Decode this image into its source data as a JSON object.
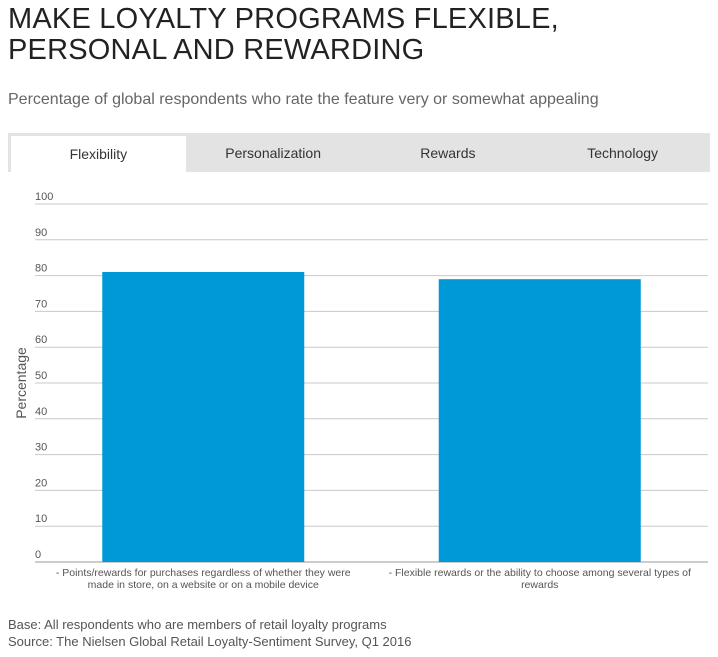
{
  "header": {
    "title": "MAKE LOYALTY PROGRAMS FLEXIBLE, PERSONAL AND REWARDING",
    "subtitle": "Percentage of global respondents who rate the feature very or somewhat appealing"
  },
  "tabs": [
    {
      "label": "Flexibility",
      "active": true
    },
    {
      "label": "Personalization",
      "active": false
    },
    {
      "label": "Rewards",
      "active": false
    },
    {
      "label": "Technology",
      "active": false
    }
  ],
  "chart_data": {
    "type": "bar",
    "ylabel": "Percentage",
    "xlabel": "",
    "ylim": [
      0,
      100
    ],
    "yticks": [
      0,
      10,
      20,
      30,
      40,
      50,
      60,
      70,
      80,
      90,
      100
    ],
    "grid": true,
    "bar_color": "#0099d8",
    "categories": [
      [
        "- Points/rewards for purchases regardless of whether they were",
        "made in store, on a website or on a mobile device"
      ],
      [
        "- Flexible rewards or the ability to choose among several types of",
        "rewards"
      ]
    ],
    "values": [
      81,
      79
    ]
  },
  "footer": {
    "base": "Base: All respondents who are members of retail loyalty programs",
    "source": "Source: The Nielsen Global Retail Loyalty-Sentiment Survey, Q1 2016"
  }
}
